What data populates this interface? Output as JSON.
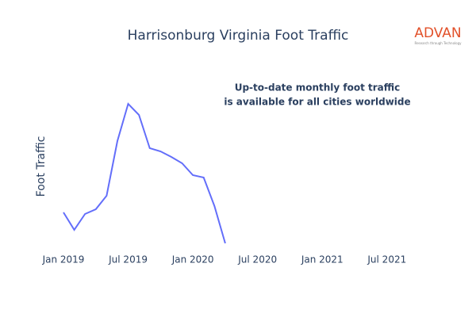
{
  "chart_data": {
    "type": "line",
    "title": "Harrisonburg Virginia Foot Traffic",
    "y_label": "Foot Traffic",
    "annotation": [
      "Up-to-date monthly foot traffic",
      "is available for all cities worldwide"
    ],
    "logo": {
      "name": "ADVAN",
      "tagline": "Research through Technology"
    },
    "x": [
      "2019-01",
      "2019-02",
      "2019-03",
      "2019-04",
      "2019-05",
      "2019-06",
      "2019-07",
      "2019-08",
      "2019-09",
      "2019-10",
      "2019-11",
      "2019-12",
      "2020-01",
      "2020-02",
      "2020-03",
      "2020-04"
    ],
    "series": [
      {
        "name": "Foot Traffic",
        "color": "#636efa",
        "values": [
          42,
          20,
          40,
          46,
          63,
          132,
          179,
          165,
          123,
          119,
          112,
          104,
          89,
          86,
          50,
          3
        ]
      }
    ],
    "xlim": [
      "2019-01",
      "2021-09"
    ],
    "xticks": [
      {
        "value": "2019-01",
        "label": "Jan 2019"
      },
      {
        "value": "2019-07",
        "label": "Jul 2019"
      },
      {
        "value": "2020-01",
        "label": "Jan 2020"
      },
      {
        "value": "2020-07",
        "label": "Jul 2020"
      },
      {
        "value": "2021-01",
        "label": "Jan 2021"
      },
      {
        "value": "2021-07",
        "label": "Jul 2021"
      }
    ],
    "ylim": [
      0,
      185
    ]
  }
}
